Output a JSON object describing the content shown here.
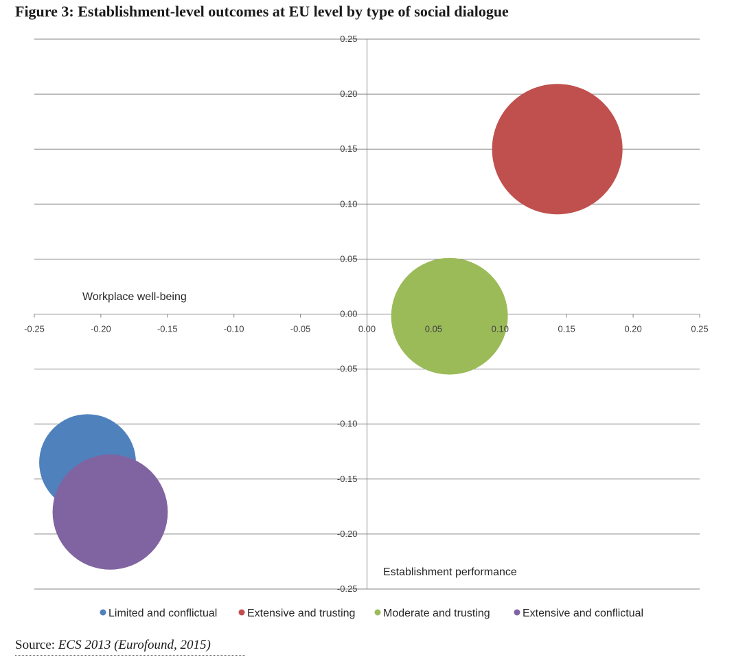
{
  "figure": {
    "title": "Figure 3: Establishment-level outcomes at EU level by type of social dialogue"
  },
  "source": {
    "label": "Source:",
    "citation": "ECS 2013 (Eurofound, 2015)"
  },
  "chart_data": {
    "type": "bubble",
    "title": "Figure 3: Establishment-level outcomes at EU level by type of social dialogue",
    "xlabel": "Establishment performance",
    "ylabel": "Workplace well-being",
    "xlim": [
      -0.25,
      0.25
    ],
    "ylim": [
      -0.25,
      0.25
    ],
    "xticks": [
      "-0.25",
      "-0.20",
      "-0.15",
      "-0.10",
      "-0.05",
      "0.00",
      "0.05",
      "0.10",
      "0.15",
      "0.20",
      "0.25"
    ],
    "yticks": [
      "0.25",
      "0.20",
      "0.15",
      "0.10",
      "0.05",
      "0.00",
      "-0.05",
      "-0.10",
      "-0.15",
      "-0.20",
      "-0.25"
    ],
    "grid": "horizontal",
    "legend": "bottom",
    "series": [
      {
        "name": "Limited and conflictual",
        "x": -0.21,
        "y": -0.135,
        "size": 0.55,
        "color": "#4f81bd"
      },
      {
        "name": "Extensive and trusting",
        "x": 0.143,
        "y": 0.15,
        "size": 1.0,
        "color": "#c0504d"
      },
      {
        "name": "Moderate and trusting",
        "x": 0.062,
        "y": -0.002,
        "size": 0.8,
        "color": "#9bbb59"
      },
      {
        "name": "Extensive and conflictual",
        "x": -0.193,
        "y": -0.18,
        "size": 0.78,
        "color": "#8064a2"
      }
    ]
  }
}
